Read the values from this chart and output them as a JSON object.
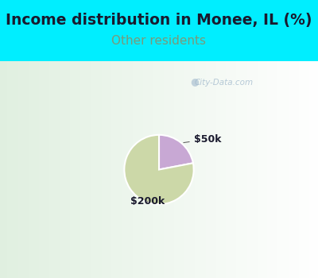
{
  "title": "Income distribution in Monee, IL (%)",
  "subtitle": "Other residents",
  "title_color": "#1a1a2e",
  "subtitle_color": "#7a9a7a",
  "background_top": "#00eeff",
  "background_chart_color": "#e8f5ec",
  "slices": [
    {
      "label": "$50k",
      "value": 22,
      "color": "#c8a8d4"
    },
    {
      "label": "$200k",
      "value": 78,
      "color": "#ccd8a8"
    }
  ],
  "watermark": "City-Data.com",
  "title_fontsize": 13.5,
  "subtitle_fontsize": 11
}
